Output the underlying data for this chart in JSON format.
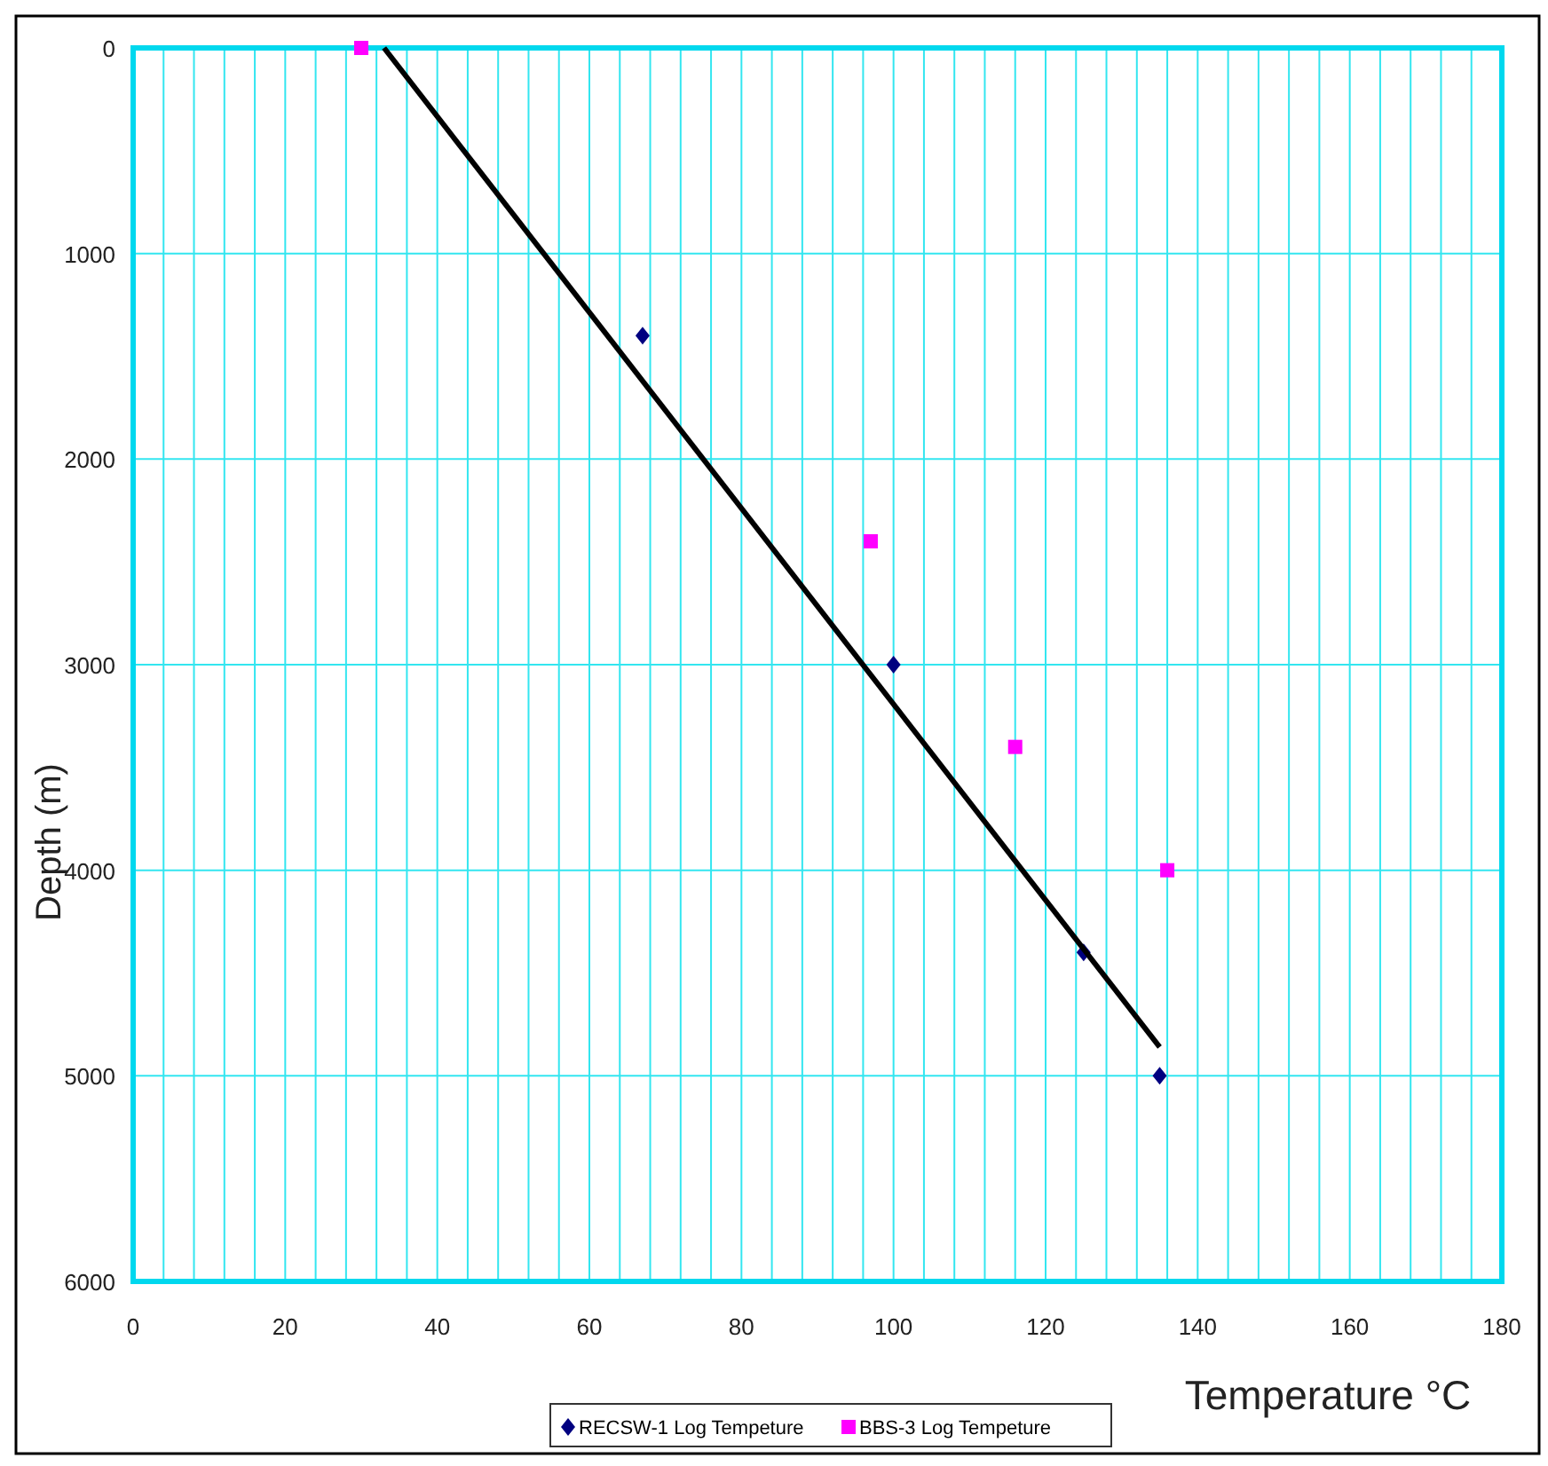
{
  "chart_data": {
    "type": "scatter",
    "xlabel": "Temperature °C",
    "ylabel": "Depth (m)",
    "xlim": [
      0,
      180
    ],
    "ylim": [
      6000,
      0
    ],
    "xticks": [
      0,
      {
        "value": 4,
        "label": null
      },
      {
        "value": 8,
        "label": null
      },
      {
        "value": 12,
        "label": null
      },
      {
        "value": 16,
        "label": null
      },
      20,
      {
        "value": 24,
        "label": null
      },
      {
        "value": 28,
        "label": null
      },
      {
        "value": 32,
        "label": null
      },
      {
        "value": 36,
        "label": null
      },
      40,
      {
        "value": 44,
        "label": null
      },
      {
        "value": 48,
        "label": null
      },
      {
        "value": 52,
        "label": null
      },
      {
        "value": 56,
        "label": null
      },
      60,
      {
        "value": 64,
        "label": null
      },
      {
        "value": 68,
        "label": null
      },
      {
        "value": 72,
        "label": null
      },
      {
        "value": 76,
        "label": null
      },
      80,
      {
        "value": 84,
        "label": null
      },
      {
        "value": 88,
        "label": null
      },
      {
        "value": 92,
        "label": null
      },
      {
        "value": 96,
        "label": null
      },
      100,
      {
        "value": 104,
        "label": null
      },
      {
        "value": 108,
        "label": null
      },
      {
        "value": 112,
        "label": null
      },
      {
        "value": 116,
        "label": null
      },
      120,
      {
        "value": 124,
        "label": null
      },
      {
        "value": 128,
        "label": null
      },
      {
        "value": 132,
        "label": null
      },
      {
        "value": 136,
        "label": null
      },
      140,
      {
        "value": 144,
        "label": null
      },
      {
        "value": 148,
        "label": null
      },
      {
        "value": 152,
        "label": null
      },
      {
        "value": 156,
        "label": null
      },
      160,
      {
        "value": 164,
        "label": null
      },
      {
        "value": 168,
        "label": null
      },
      {
        "value": 172,
        "label": null
      },
      {
        "value": 176,
        "label": null
      },
      180
    ],
    "yticks": [
      0,
      1000,
      2000,
      3000,
      4000,
      5000,
      6000
    ],
    "grid": true,
    "legend": "bottom",
    "series": [
      {
        "name": "RECSW-1 Log Tempeture",
        "marker": "diamond",
        "color": "#000080",
        "x": [
          67,
          100,
          125,
          135
        ],
        "values": [
          1400,
          3000,
          4400,
          5000
        ]
      },
      {
        "name": "BBS-3 Log Tempeture",
        "marker": "square",
        "color": "#ff00ff",
        "x": [
          30,
          97,
          116,
          136
        ],
        "values": [
          0,
          2400,
          3400,
          4000
        ]
      },
      {
        "type": "line",
        "color": "#000000",
        "line_style": "solid",
        "x": [
          33,
          135
        ],
        "values": [
          0,
          4860
        ]
      }
    ]
  }
}
